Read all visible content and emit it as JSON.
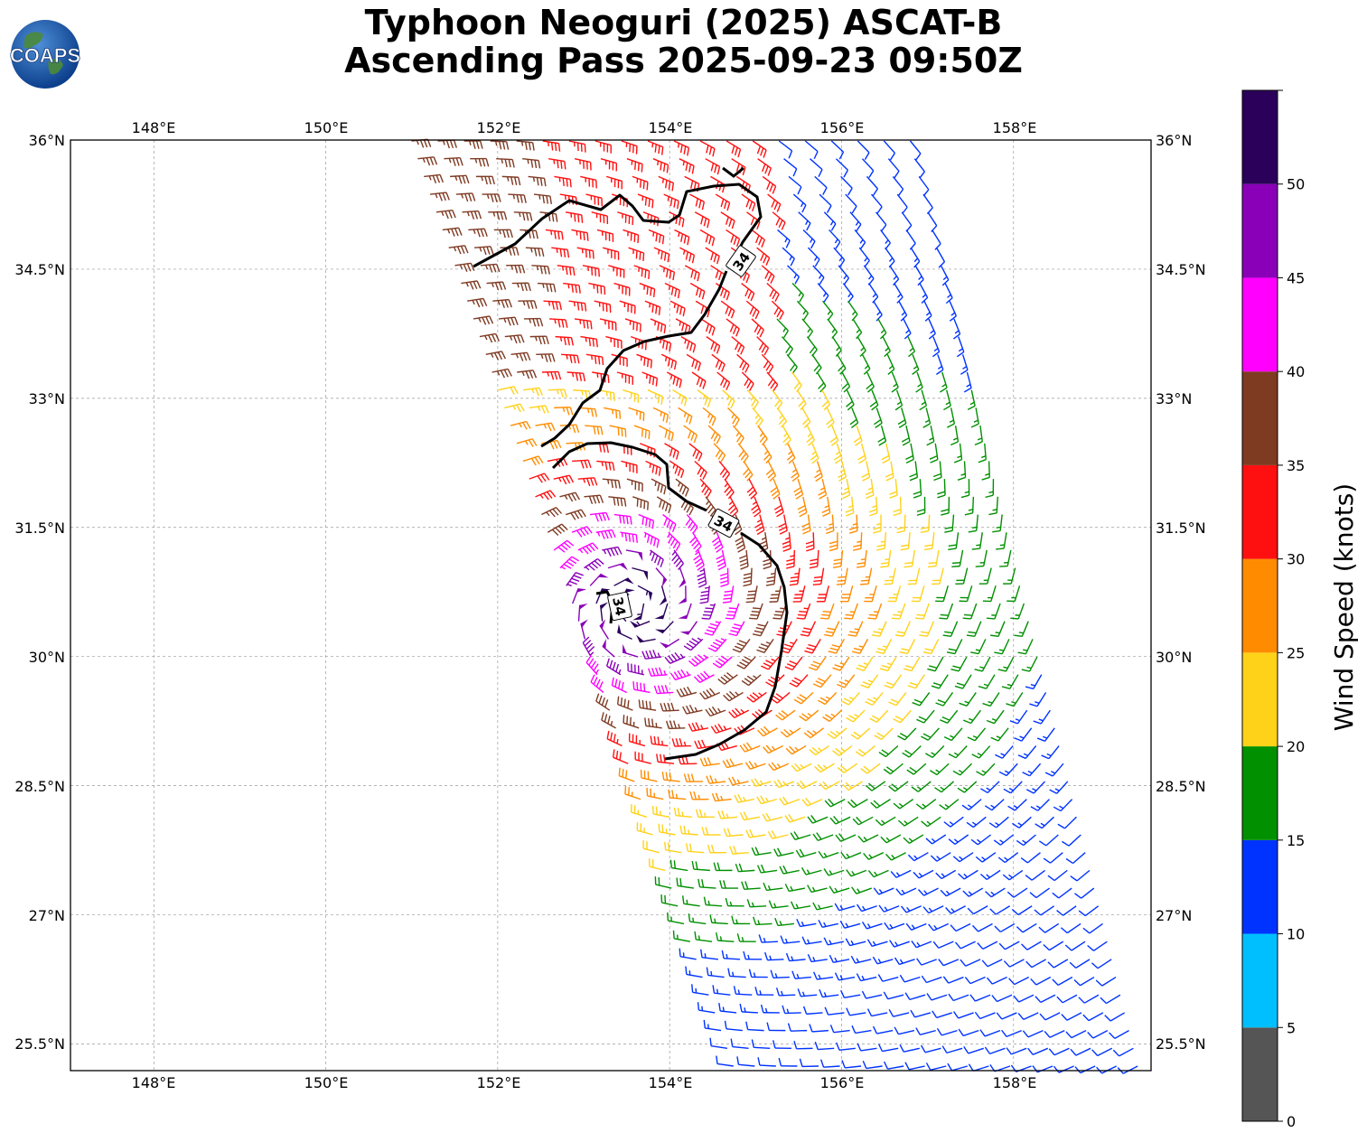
{
  "title": {
    "line1": "Typhoon Neoguri (2025) ASCAT-B",
    "line2": "Ascending Pass 2025-09-23 09:50Z"
  },
  "logo": {
    "text": "COAPS",
    "icon": "globe-icon"
  },
  "map": {
    "lon_labels": [
      "148°E",
      "150°E",
      "152°E",
      "154°E",
      "156°E",
      "158°E"
    ],
    "lat_labels": [
      "36°N",
      "34.5°N",
      "33°N",
      "31.5°N",
      "30°N",
      "28.5°N",
      "27°N",
      "25.5°N"
    ],
    "contour_label": "34"
  },
  "colorbar": {
    "label": "Wind Speed (knots)",
    "ticks": [
      "0",
      "5",
      "10",
      "15",
      "20",
      "25",
      "30",
      "35",
      "40",
      "45",
      "50"
    ],
    "bins": [
      {
        "min": 0,
        "max": 5,
        "color": "#555555"
      },
      {
        "min": 5,
        "max": 10,
        "color": "#00bfff"
      },
      {
        "min": 10,
        "max": 15,
        "color": "#0033ff"
      },
      {
        "min": 15,
        "max": 20,
        "color": "#009000"
      },
      {
        "min": 20,
        "max": 25,
        "color": "#ffd21a"
      },
      {
        "min": 25,
        "max": 30,
        "color": "#ff8c00"
      },
      {
        "min": 30,
        "max": 35,
        "color": "#ff1010"
      },
      {
        "min": 35,
        "max": 40,
        "color": "#7f3a22"
      },
      {
        "min": 40,
        "max": 45,
        "color": "#ff00ff"
      },
      {
        "min": 45,
        "max": 50,
        "color": "#8a00b8"
      },
      {
        "min": 50,
        "max": 55,
        "color": "#2a005a"
      }
    ]
  }
}
